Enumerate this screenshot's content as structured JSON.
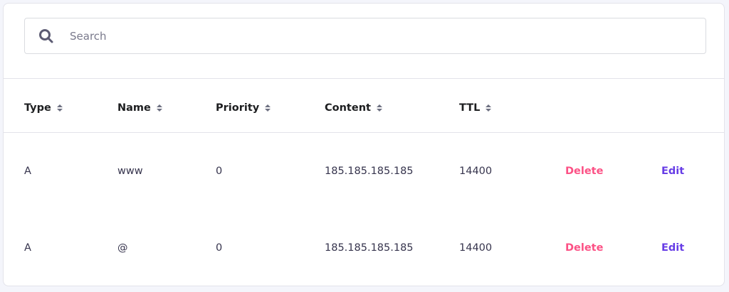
{
  "search": {
    "placeholder": "Search",
    "icon": "search-icon"
  },
  "columns": [
    "Type",
    "Name",
    "Priority",
    "Content",
    "TTL"
  ],
  "rows": [
    {
      "type": "A",
      "name": "www",
      "priority": "0",
      "content": "185.185.185.185",
      "ttl": "14400",
      "delete": "Delete",
      "edit": "Edit"
    },
    {
      "type": "A",
      "name": "@",
      "priority": "0",
      "content": "185.185.185.185",
      "ttl": "14400",
      "delete": "Delete",
      "edit": "Edit"
    }
  ],
  "colors": {
    "delete": "#fc5185",
    "edit": "#673de6",
    "background": "#f4f5fb"
  }
}
